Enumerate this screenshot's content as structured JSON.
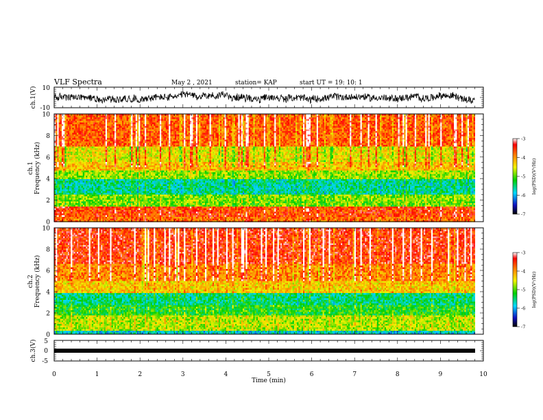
{
  "header": {
    "title": "VLF Spectra",
    "date": "May 2 , 2021",
    "station": "station= KAP",
    "start": "start UT = 19: 10: 1"
  },
  "chart_data": [
    {
      "type": "line",
      "panel": "ch1-waveform",
      "ylabel": "ch.1(V)",
      "ylim": [
        -10,
        10
      ],
      "yticks": [
        "10",
        "-10"
      ],
      "xlim": [
        0,
        10
      ],
      "note_series": "dense noisy waveform, amplitude roughly -7 to 7 V, mean near 0"
    },
    {
      "type": "heatmap",
      "panel": "ch1-spectrogram",
      "ylabel": "ch.1 Frequency (kHz)",
      "ylim": [
        0,
        10
      ],
      "yticks": [
        "0",
        "2",
        "4",
        "6",
        "8",
        "10"
      ],
      "xlim": [
        0,
        9.8
      ],
      "colorbar": {
        "label": "log(PSD)(V²/Hz)",
        "range": [
          -7,
          -3
        ],
        "ticks": [
          "-3",
          "-4",
          "-5",
          "-6",
          "-7"
        ]
      },
      "bands_khz": [
        {
          "from": 0,
          "to": 0.5,
          "level": -3.8
        },
        {
          "from": 0.5,
          "to": 1.5,
          "level": -3.6
        },
        {
          "from": 1.5,
          "to": 2.6,
          "level": -4.9
        },
        {
          "from": 2.6,
          "to": 3.9,
          "level": -5.6
        },
        {
          "from": 3.9,
          "to": 4.7,
          "level": -4.8
        },
        {
          "from": 4.7,
          "to": 5.6,
          "level": -4.2
        },
        {
          "from": 5.6,
          "to": 7.0,
          "level": -4.5
        },
        {
          "from": 7.0,
          "to": 10.0,
          "level": -3.7
        }
      ]
    },
    {
      "type": "heatmap",
      "panel": "ch2-spectrogram",
      "ylabel": "ch.2 Frequency (kHz)",
      "ylim": [
        0,
        10
      ],
      "yticks": [
        "0",
        "2",
        "4",
        "6",
        "8",
        "10"
      ],
      "xlim": [
        0,
        9.8
      ],
      "colorbar": {
        "label": "log(PSD)(V²/Hz)",
        "range": [
          -7,
          -3
        ],
        "ticks": [
          "-3",
          "-4",
          "-5",
          "-6",
          "-7"
        ]
      },
      "bands_khz": [
        {
          "from": 0,
          "to": 0.4,
          "level": -5.8
        },
        {
          "from": 0.4,
          "to": 1.8,
          "level": -4.7
        },
        {
          "from": 1.8,
          "to": 2.8,
          "level": -5.2
        },
        {
          "from": 2.8,
          "to": 3.8,
          "level": -5.5
        },
        {
          "from": 3.8,
          "to": 5.0,
          "level": -4.3
        },
        {
          "from": 5.0,
          "to": 6.6,
          "level": -3.9
        },
        {
          "from": 6.6,
          "to": 10.0,
          "level": -3.5
        }
      ]
    },
    {
      "type": "line",
      "panel": "ch3-waveform",
      "ylabel": "ch.3(V)",
      "ylim": [
        -5,
        5
      ],
      "yticks": [
        "5",
        "0",
        "-5"
      ],
      "xlim": [
        0,
        10
      ],
      "xlabel": "Time (min)",
      "xticks": [
        "0",
        "1",
        "2",
        "3",
        "4",
        "5",
        "6",
        "7",
        "8",
        "9",
        "10"
      ],
      "note_series": "nearly constant level near -1 V, thick dense trace"
    }
  ]
}
